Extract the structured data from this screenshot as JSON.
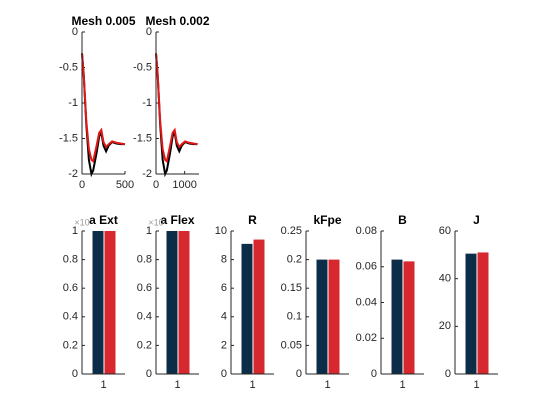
{
  "chart_data": [
    {
      "type": "line",
      "title": "Mesh 0.005",
      "x": [
        0,
        20,
        50,
        80,
        110,
        130,
        170,
        200,
        225,
        250,
        280,
        310,
        350,
        400,
        450,
        500
      ],
      "series": [
        {
          "color": "#000000",
          "values": [
            -0.3,
            -0.6,
            -1.3,
            -1.8,
            -2.0,
            -1.95,
            -1.7,
            -1.47,
            -1.42,
            -1.6,
            -1.68,
            -1.6,
            -1.55,
            -1.57,
            -1.58,
            -1.58
          ]
        },
        {
          "color": "#e01818",
          "values": [
            -0.3,
            -0.6,
            -1.25,
            -1.65,
            -1.8,
            -1.82,
            -1.6,
            -1.42,
            -1.38,
            -1.55,
            -1.62,
            -1.58,
            -1.54,
            -1.56,
            -1.57,
            -1.58
          ]
        }
      ],
      "xlim": [
        0,
        500
      ],
      "xticks": [
        0,
        500
      ],
      "ylim": [
        -2,
        0
      ],
      "yticks": [
        0,
        -0.5,
        -1,
        -1.5,
        -2
      ]
    },
    {
      "type": "line",
      "title": "Mesh 0.002",
      "x": [
        0,
        58,
        145,
        232,
        319,
        377,
        493,
        580,
        652,
        725,
        812,
        899,
        1015,
        1160,
        1305,
        1450
      ],
      "series": [
        {
          "color": "#000000",
          "values": [
            -0.3,
            -0.6,
            -1.3,
            -1.8,
            -2.0,
            -1.95,
            -1.7,
            -1.47,
            -1.42,
            -1.6,
            -1.68,
            -1.6,
            -1.55,
            -1.57,
            -1.58,
            -1.58
          ]
        },
        {
          "color": "#e01818",
          "values": [
            -0.3,
            -0.6,
            -1.25,
            -1.65,
            -1.8,
            -1.82,
            -1.6,
            -1.42,
            -1.38,
            -1.55,
            -1.62,
            -1.58,
            -1.54,
            -1.56,
            -1.57,
            -1.58
          ]
        }
      ],
      "xlim": [
        0,
        1500
      ],
      "xticks": [
        0,
        1000
      ],
      "ylim": [
        -2,
        0
      ],
      "yticks": [
        0,
        -0.5,
        -1,
        -1.5,
        -2
      ]
    },
    {
      "type": "bar",
      "title": "a Ext",
      "exponent": "×10",
      "categories": [
        "1"
      ],
      "series": [
        {
          "color": "#0c2d48",
          "values": [
            1
          ]
        },
        {
          "color": "#d7282f",
          "values": [
            1
          ]
        }
      ],
      "ylim": [
        0,
        1
      ],
      "yticks": [
        0,
        0.2,
        0.4,
        0.6,
        0.8,
        1
      ]
    },
    {
      "type": "bar",
      "title": "a Flex",
      "exponent": "×10",
      "categories": [
        "1"
      ],
      "series": [
        {
          "color": "#0c2d48",
          "values": [
            1
          ]
        },
        {
          "color": "#d7282f",
          "values": [
            1
          ]
        }
      ],
      "ylim": [
        0,
        1
      ],
      "yticks": [
        0,
        0.2,
        0.4,
        0.6,
        0.8,
        1
      ]
    },
    {
      "type": "bar",
      "title": "R",
      "categories": [
        "1"
      ],
      "series": [
        {
          "color": "#0c2d48",
          "values": [
            9.1
          ]
        },
        {
          "color": "#d7282f",
          "values": [
            9.4
          ]
        }
      ],
      "ylim": [
        0,
        10
      ],
      "yticks": [
        0,
        2,
        4,
        6,
        8,
        10
      ]
    },
    {
      "type": "bar",
      "title": "kFpe",
      "categories": [
        "1"
      ],
      "series": [
        {
          "color": "#0c2d48",
          "values": [
            0.2
          ]
        },
        {
          "color": "#d7282f",
          "values": [
            0.2
          ]
        }
      ],
      "ylim": [
        0,
        0.25
      ],
      "yticks": [
        0,
        0.05,
        0.1,
        0.15,
        0.2,
        0.25
      ]
    },
    {
      "type": "bar",
      "title": "B",
      "categories": [
        "1"
      ],
      "series": [
        {
          "color": "#0c2d48",
          "values": [
            0.064
          ]
        },
        {
          "color": "#d7282f",
          "values": [
            0.063
          ]
        }
      ],
      "ylim": [
        0,
        0.08
      ],
      "yticks": [
        0,
        0.02,
        0.04,
        0.06,
        0.08
      ]
    },
    {
      "type": "bar",
      "title": "J",
      "categories": [
        "1"
      ],
      "series": [
        {
          "color": "#0c2d48",
          "values": [
            50.5
          ]
        },
        {
          "color": "#d7282f",
          "values": [
            51
          ]
        }
      ],
      "ylim": [
        0,
        60
      ],
      "yticks": [
        0,
        20,
        40,
        60
      ]
    }
  ]
}
